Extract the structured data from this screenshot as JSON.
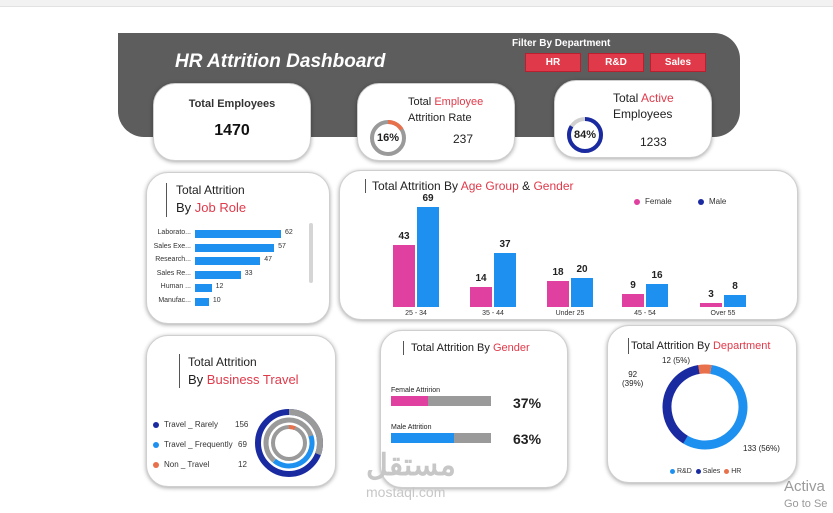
{
  "header": {
    "title": "HR Attrition Dashboard",
    "filter_title": "Filter By Department",
    "filters": [
      "HR",
      "R&D",
      "Sales"
    ]
  },
  "kpi": {
    "total_employees": {
      "label": "Total Employees",
      "value": "1470"
    },
    "attrition": {
      "label_plain": "Total",
      "label_red": "Employee",
      "label_line2": "Attrition Rate",
      "pct": "16%",
      "pct_value": 0.16,
      "value": "237"
    },
    "active": {
      "label_plain": "Total",
      "label_red": "Active",
      "label_line2": "Employees",
      "pct": "84%",
      "pct_value": 0.84,
      "value": "1233"
    }
  },
  "job_role": {
    "title_line1": "Total Attrition",
    "title_line2_plain": "By",
    "title_line2_red": "Job Role",
    "chart_data": {
      "type": "bar",
      "orientation": "horizontal",
      "categories": [
        "Laborato...",
        "Sales Exe...",
        "Research...",
        "Sales Re...",
        "Human ...",
        "Manufac..."
      ],
      "values": [
        62,
        57,
        47,
        33,
        12,
        10
      ],
      "color": "#1e90f0"
    }
  },
  "age_gender": {
    "title_plain": "Total Attrition By",
    "title_red1": "Age Group",
    "title_amp": "&",
    "title_red2": "Gender",
    "chart_data": {
      "type": "bar",
      "categories": [
        "25 - 34",
        "35 - 44",
        "Under 25",
        "45 - 54",
        "Over 55"
      ],
      "series": [
        {
          "name": "Female",
          "values": [
            43,
            14,
            18,
            9,
            3
          ],
          "color": "#e040a0"
        },
        {
          "name": "Male",
          "values": [
            69,
            37,
            20,
            16,
            8
          ],
          "color": "#1e90f0"
        }
      ],
      "ylim": [
        0,
        69
      ]
    }
  },
  "business_travel": {
    "title_line1": "Total Attrition",
    "title_line2_plain": "By",
    "title_line2_red": "Business Travel",
    "items": [
      {
        "label": "Travel _ Rarely",
        "value": "156",
        "color": "#1a2aa0"
      },
      {
        "label": "Travel _ Frequently",
        "value": "69",
        "color": "#1e90f0"
      },
      {
        "label": "Non _ Travel",
        "value": "12",
        "color": "#e8704a"
      }
    ]
  },
  "gender": {
    "title_plain": "Total Attrition By",
    "title_red": "Gender",
    "rows": [
      {
        "label": "Female Attririon",
        "pct": "37%",
        "fill": 0.37,
        "color": "#e040a0"
      },
      {
        "label": "Male Attrition",
        "pct": "63%",
        "fill": 0.63,
        "color": "#1e90f0"
      }
    ]
  },
  "department": {
    "title_plain": "Total Attrition By",
    "title_red": "Department",
    "chart_data": {
      "type": "pie",
      "categories": [
        "R&D",
        "Sales",
        "HR"
      ],
      "values": [
        133,
        92,
        12
      ],
      "labels": [
        "133 (56%)",
        "92 (39%)",
        "12 (5%)"
      ],
      "colors": [
        "#1e90f0",
        "#1a2aa0",
        "#e8704a"
      ]
    },
    "label_92_line1": "92",
    "label_92_line2": "(39%)"
  },
  "watermark": {
    "arabic": "مستقل",
    "latin": "mostaql.com"
  },
  "os_watermark": {
    "line1": "Activa",
    "line2": "Go to Se"
  }
}
